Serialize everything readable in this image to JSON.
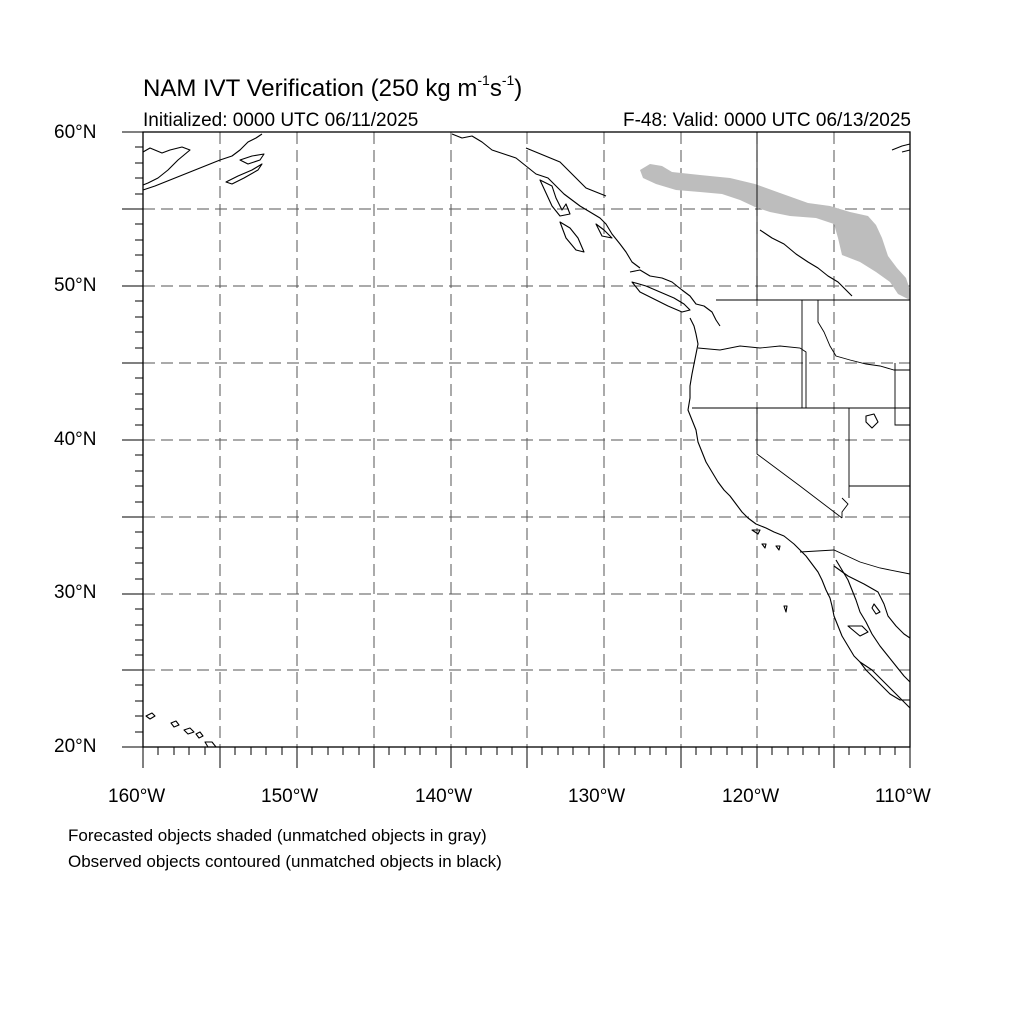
{
  "title_main": "NAM IVT Verification (250 kg m",
  "title_sup1": "-1",
  "title_mid": "s",
  "title_sup2": "-1",
  "title_end": ")",
  "init_text": "Initialized: 0000 UTC 06/11/2025",
  "valid_text": "F-48: Valid: 0000 UTC 06/13/2025",
  "lat_labels": [
    "60°N",
    "50°N",
    "40°N",
    "30°N",
    "20°N"
  ],
  "lon_labels": [
    "160°W",
    "150°W",
    "140°W",
    "130°W",
    "120°W",
    "110°W"
  ],
  "legend_note_1": "Forecasted objects shaded (unmatched objects in gray)",
  "legend_note_2": "Observed objects contoured (unmatched objects in black)",
  "map_extent": {
    "lon_min": -160,
    "lon_max": -110,
    "lat_min": 20,
    "lat_max": 60
  },
  "colors": {
    "forecast_unmatched": "#bdbdbd",
    "coastline": "#000000",
    "grid": "#555555"
  }
}
